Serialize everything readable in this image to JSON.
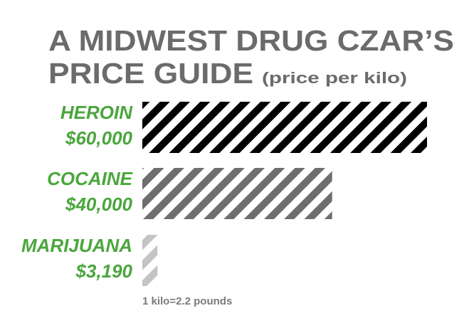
{
  "chart_data": {
    "type": "bar",
    "orientation": "horizontal",
    "title_line1": "A MIDWEST DRUG CZAR’S",
    "title_line2": "PRICE GUIDE",
    "subtitle": "(price per kilo)",
    "categories": [
      "HEROIN",
      "COCAINE",
      "MARIJUANA"
    ],
    "value_labels": [
      "$60,000",
      "$40,000",
      "$3,190"
    ],
    "values": [
      60000,
      40000,
      3190
    ],
    "bar_colors": [
      "#000000",
      "#6e6e6e",
      "#c4c4c4"
    ],
    "label_color": "#4aa63c",
    "xlim": [
      0,
      60000
    ],
    "grid": false,
    "footnote": "1 kilo=2.2 pounds"
  }
}
